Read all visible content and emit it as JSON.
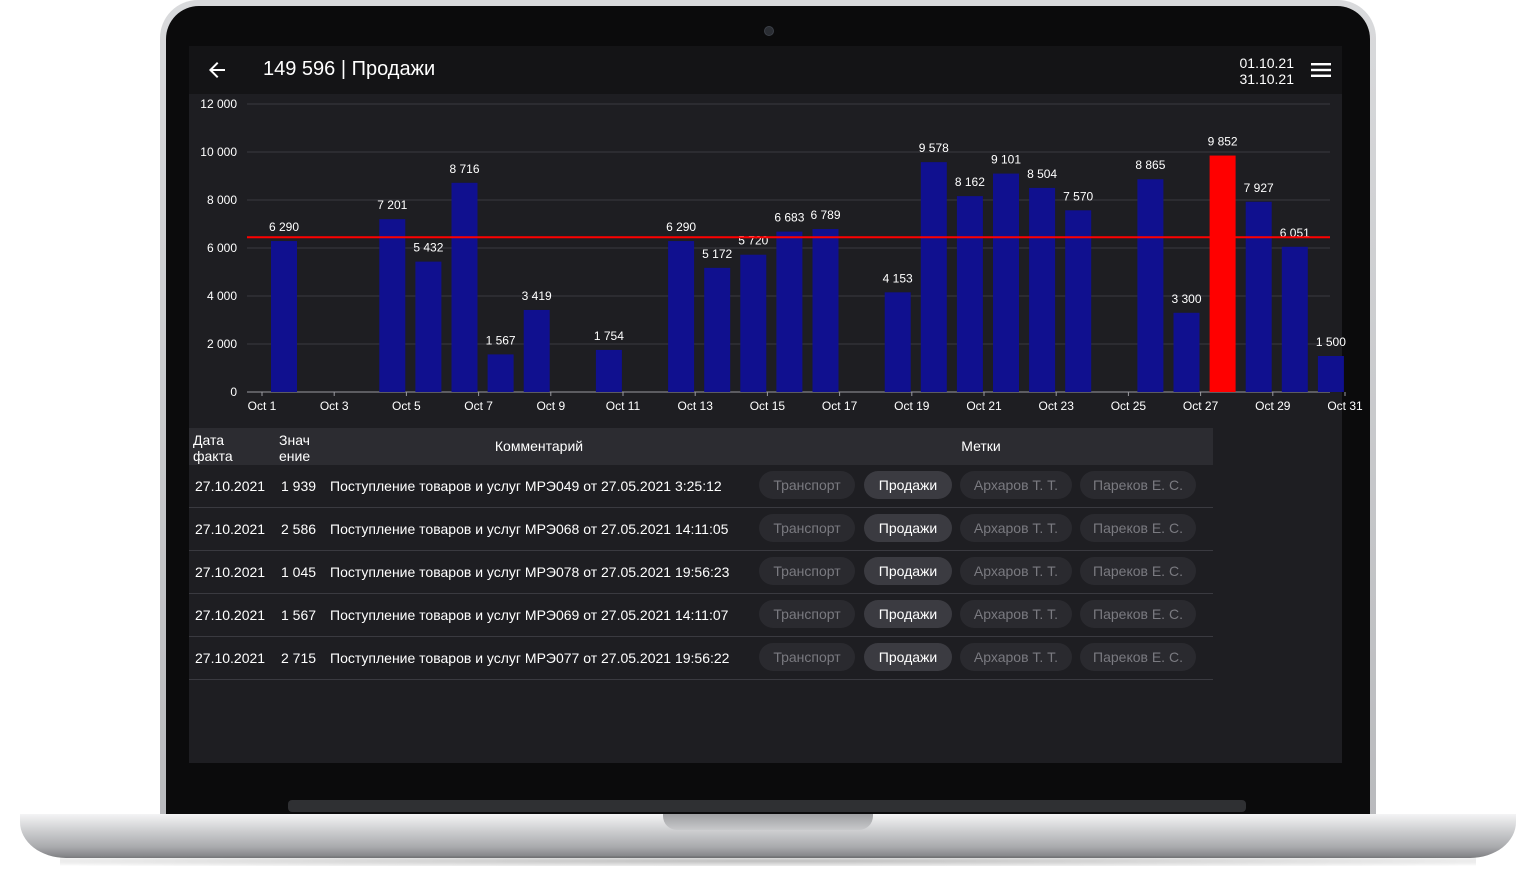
{
  "header": {
    "title": "149 596 | Продажи",
    "date_from": "01.10.21",
    "date_to": "31.10.21"
  },
  "colors": {
    "bar": "#10108f",
    "highlight_bar": "#ff0000",
    "average_line": "#ff0000",
    "background": "#1e1e22"
  },
  "chart_data": {
    "type": "bar",
    "ylim": [
      0,
      12000
    ],
    "yticks": [
      0,
      2000,
      4000,
      6000,
      8000,
      10000,
      12000
    ],
    "ytick_labels": [
      "0",
      "2 000",
      "4 000",
      "6 000",
      "8 000",
      "10 000",
      "12 000"
    ],
    "xtick_labels": [
      "Oct 1",
      "Oct 3",
      "Oct 5",
      "Oct 7",
      "Oct 9",
      "Oct 11",
      "Oct 13",
      "Oct 15",
      "Oct 17",
      "Oct 19",
      "Oct 21",
      "Oct 23",
      "Oct 25",
      "Oct 27",
      "Oct 29",
      "Oct 31"
    ],
    "average_line": 6450,
    "highlight_day": 27,
    "days": [
      1,
      4,
      5,
      6,
      7,
      8,
      10,
      12,
      13,
      14,
      15,
      16,
      18,
      19,
      20,
      21,
      22,
      23,
      25,
      26,
      27,
      28,
      29,
      30
    ],
    "values": [
      6290,
      7201,
      5432,
      8716,
      1567,
      3419,
      1754,
      6290,
      5172,
      5720,
      6683,
      6789,
      4153,
      9578,
      8162,
      9101,
      8504,
      7570,
      8865,
      3300,
      9852,
      7927,
      6051,
      1500
    ],
    "value_labels": [
      "6 290",
      "7 201",
      "5 432",
      "8 716",
      "1 567",
      "3 419",
      "1 754",
      "6 290",
      "5 172",
      "5 720",
      "6 683",
      "6 789",
      "4 153",
      "9 578",
      "8 162",
      "9 101",
      "8 504",
      "7 570",
      "8 865",
      "3 300",
      "9 852",
      "7 927",
      "6 051",
      "1 500"
    ],
    "grid": true
  },
  "table": {
    "headers": {
      "date_line1": "Дата",
      "date_line2": "факта",
      "value_line1": "Знач",
      "value_line2": "ение",
      "comment": "Комментарий",
      "tags": "Метки"
    },
    "rows": [
      {
        "date": "27.10.2021",
        "value": "1 939",
        "comment": "Поступление товаров и услуг МРЭ049 от 27.05.2021 3:25:12",
        "tags": [
          "Транспорт",
          "Продажи",
          "Архаров Т. Т.",
          "Пареков Е. С."
        ]
      },
      {
        "date": "27.10.2021",
        "value": "2 586",
        "comment": "Поступление товаров и услуг МРЭ068 от 27.05.2021 14:11:05",
        "tags": [
          "Транспорт",
          "Продажи",
          "Архаров Т. Т.",
          "Пареков Е. С."
        ]
      },
      {
        "date": "27.10.2021",
        "value": "1 045",
        "comment": "Поступление товаров и услуг МРЭ078 от 27.05.2021 19:56:23",
        "tags": [
          "Транспорт",
          "Продажи",
          "Архаров Т. Т.",
          "Пареков Е. С."
        ]
      },
      {
        "date": "27.10.2021",
        "value": "1 567",
        "comment": "Поступление товаров и услуг МРЭ069 от 27.05.2021 14:11:07",
        "tags": [
          "Транспорт",
          "Продажи",
          "Архаров Т. Т.",
          "Пареков Е. С."
        ]
      },
      {
        "date": "27.10.2021",
        "value": "2 715",
        "comment": "Поступление товаров и услуг МРЭ077 от 27.05.2021 19:56:22",
        "tags": [
          "Транспорт",
          "Продажи",
          "Архаров Т. Т.",
          "Пареков Е. С."
        ]
      }
    ]
  }
}
